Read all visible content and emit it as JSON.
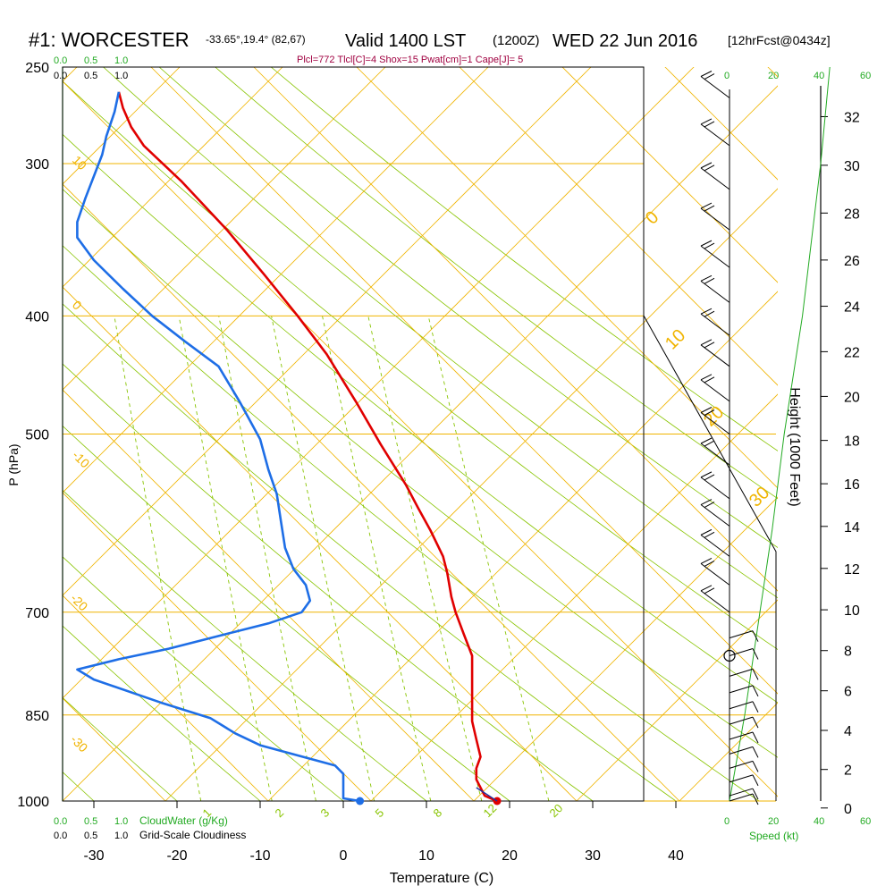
{
  "header": {
    "station": "#1: WORCESTER",
    "coords": "-33.65°,19.4° (82,67)",
    "valid": "Valid 1400 LST",
    "utc": "(1200Z)",
    "date": "WED 22 Jun 2016",
    "forecast": "[12hrFcst@0434z]",
    "indices": "Plcl=772 Tlcl[C]=4 Shox=15 Pwat[cm]=1 Cape[J]= 5"
  },
  "colors": {
    "temperature": "#e00000",
    "dewpoint": "#1e6ee6",
    "isotherm_isobar": "#f0b400",
    "dry_adiabat": "#88c400",
    "mixing_ratio": "#88c400",
    "green_labels": "#22aa22",
    "indices_text": "#a00040"
  },
  "labels": {
    "x_axis_title": "Temperature (C)",
    "y_axis_title": "P (hPa)",
    "height_axis_title": "Height (1000 Feet)",
    "cloud_water": "CloudWater (g/Kg)",
    "cloudiness": "Grid-Scale Cloudiness",
    "speed": "Speed (kt)",
    "scale_ticks": [
      "0.0",
      "0.5",
      "1.0"
    ],
    "speed_ticks": [
      "0",
      "20",
      "40",
      "60"
    ]
  },
  "chart_data": {
    "type": "line",
    "xlim": [
      -35,
      35
    ],
    "pressure_range": [
      250,
      1000
    ],
    "x_ticks": [
      "-30",
      "-20",
      "-10",
      "0",
      "10",
      "20",
      "30",
      "40"
    ],
    "pressure_ticks": [
      "250",
      "300",
      "400",
      "500",
      "700",
      "850",
      "1000"
    ],
    "height_ticks": [
      "0",
      "2",
      "4",
      "6",
      "8",
      "10",
      "12",
      "14",
      "16",
      "18",
      "20",
      "22",
      "24",
      "26",
      "28",
      "30",
      "32"
    ],
    "isotherm_labels": [
      "10",
      "0",
      "-10",
      "-20",
      "-30"
    ],
    "skewed_isotherm_labels": [
      "0",
      "10",
      "20",
      "30"
    ],
    "mixing_ratio_labels": [
      "1",
      "2",
      "3",
      "5",
      "8",
      "12",
      "20"
    ],
    "series": [
      {
        "name": "Temperature",
        "points": [
          [
            18.5,
            1000
          ],
          [
            17,
            990
          ],
          [
            16,
            960
          ],
          [
            16,
            940
          ],
          [
            16.5,
            920
          ],
          [
            16,
            890
          ],
          [
            15.5,
            860
          ],
          [
            15.5,
            830
          ],
          [
            15.5,
            790
          ],
          [
            15.5,
            760
          ],
          [
            14.5,
            730
          ],
          [
            13.5,
            700
          ],
          [
            13,
            680
          ],
          [
            12.5,
            650
          ],
          [
            12,
            630
          ],
          [
            10.5,
            600
          ],
          [
            9,
            575
          ],
          [
            7.5,
            550
          ],
          [
            4.5,
            510
          ],
          [
            1.5,
            470
          ],
          [
            -2,
            430
          ],
          [
            -5.5,
            400
          ],
          [
            -9.5,
            370
          ],
          [
            -14,
            340
          ],
          [
            -19.5,
            310
          ],
          [
            -24,
            290
          ],
          [
            -25.5,
            280
          ],
          [
            -26.5,
            270
          ],
          [
            -27,
            262
          ]
        ]
      },
      {
        "name": "Dewpoint",
        "points": [
          [
            2,
            1000
          ],
          [
            0,
            995
          ],
          [
            0,
            950
          ],
          [
            -1,
            935
          ],
          [
            -10,
            900
          ],
          [
            -13,
            880
          ],
          [
            -16,
            855
          ],
          [
            -22,
            830
          ],
          [
            -30,
            795
          ],
          [
            -32,
            780
          ],
          [
            -27,
            765
          ],
          [
            -21,
            750
          ],
          [
            -16,
            735
          ],
          [
            -9,
            715
          ],
          [
            -5,
            700
          ],
          [
            -4,
            685
          ],
          [
            -4.5,
            665
          ],
          [
            -6,
            645
          ],
          [
            -7,
            620
          ],
          [
            -7.5,
            590
          ],
          [
            -8,
            560
          ],
          [
            -9,
            535
          ],
          [
            -10,
            505
          ],
          [
            -12.5,
            470
          ],
          [
            -15,
            440
          ],
          [
            -19,
            420
          ],
          [
            -23,
            400
          ],
          [
            -26.5,
            380
          ],
          [
            -30,
            360
          ],
          [
            -32,
            345
          ],
          [
            -32,
            335
          ],
          [
            -31,
            320
          ],
          [
            -29,
            295
          ],
          [
            -28.5,
            285
          ],
          [
            -27.5,
            272
          ],
          [
            -27,
            262
          ]
        ]
      }
    ],
    "surface_temperature": 18.5,
    "surface_dewpoint": 2,
    "wind_barbs_pressure": [
      265,
      290,
      315,
      340,
      365,
      390,
      415,
      440,
      470,
      500,
      530,
      565,
      595,
      630,
      665,
      700,
      735,
      760,
      790,
      815,
      840,
      865,
      890,
      915,
      940,
      965,
      990,
      1000
    ],
    "height_curve_ft": [
      [
        0,
        1000
      ],
      [
        5,
        850
      ],
      [
        10,
        700
      ],
      [
        14,
        600
      ],
      [
        18,
        500
      ],
      [
        24,
        400
      ],
      [
        30,
        300
      ],
      [
        33,
        250
      ]
    ]
  }
}
